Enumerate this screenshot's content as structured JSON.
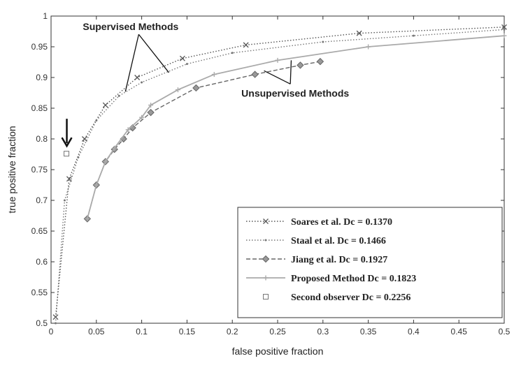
{
  "chart_data": {
    "type": "line",
    "title": "",
    "xlabel": "false positive fraction",
    "ylabel": "true positive fraction",
    "xlim": [
      0,
      0.5
    ],
    "ylim": [
      0.5,
      1
    ],
    "x_ticks": [
      "0",
      "0.05",
      "0.1",
      "0.15",
      "0.2",
      "0.25",
      "0.3",
      "0.35",
      "0.4",
      "0.45",
      "0.5"
    ],
    "y_ticks": [
      "0.5",
      "0.55",
      "0.6",
      "0.65",
      "0.7",
      "0.75",
      "0.8",
      "0.85",
      "0.9",
      "0.95",
      "1"
    ],
    "grid": false,
    "legend_position": "bottom-right",
    "series": [
      {
        "name": "Soares et al. Dc = 0.1370",
        "color": "#555555",
        "style": "dotted",
        "marker": "x",
        "points": [
          [
            0.005,
            0.51
          ],
          [
            0.02,
            0.735
          ],
          [
            0.037,
            0.8
          ],
          [
            0.06,
            0.855
          ],
          [
            0.095,
            0.9
          ],
          [
            0.145,
            0.931
          ],
          [
            0.215,
            0.953
          ],
          [
            0.34,
            0.972
          ],
          [
            0.5,
            0.982
          ]
        ]
      },
      {
        "name": "Staal et al. Dc = 0.1466",
        "color": "#777777",
        "style": "dotted",
        "marker": "dot",
        "points": [
          [
            0.005,
            0.5
          ],
          [
            0.015,
            0.7
          ],
          [
            0.03,
            0.77
          ],
          [
            0.05,
            0.83
          ],
          [
            0.075,
            0.87
          ],
          [
            0.1,
            0.892
          ],
          [
            0.15,
            0.922
          ],
          [
            0.2,
            0.94
          ],
          [
            0.3,
            0.958
          ],
          [
            0.4,
            0.968
          ],
          [
            0.5,
            0.978
          ]
        ]
      },
      {
        "name": "Jiang et al. Dc = 0.1927",
        "color": "#666666",
        "style": "dashed",
        "marker": "diamond",
        "points": [
          [
            0.04,
            0.67
          ],
          [
            0.05,
            0.725
          ],
          [
            0.06,
            0.763
          ],
          [
            0.07,
            0.783
          ],
          [
            0.08,
            0.8
          ],
          [
            0.09,
            0.818
          ],
          [
            0.11,
            0.843
          ],
          [
            0.16,
            0.883
          ],
          [
            0.225,
            0.905
          ],
          [
            0.275,
            0.92
          ],
          [
            0.297,
            0.926
          ]
        ]
      },
      {
        "name": "Proposed Method Dc = 0.1823",
        "color": "#aaaaaa",
        "style": "solid",
        "marker": "plus",
        "points": [
          [
            0.04,
            0.67
          ],
          [
            0.05,
            0.725
          ],
          [
            0.06,
            0.763
          ],
          [
            0.07,
            0.785
          ],
          [
            0.085,
            0.815
          ],
          [
            0.1,
            0.835
          ],
          [
            0.11,
            0.855
          ],
          [
            0.14,
            0.88
          ],
          [
            0.18,
            0.905
          ],
          [
            0.25,
            0.928
          ],
          [
            0.35,
            0.95
          ],
          [
            0.5,
            0.968
          ]
        ]
      },
      {
        "name": "Second observer Dc = 0.2256",
        "color": "#777777",
        "style": "none",
        "marker": "square",
        "points": [
          [
            0.017,
            0.776
          ]
        ]
      }
    ],
    "annotations": [
      {
        "text": "Supervised Methods",
        "anchor": [
          0.035,
          0.977
        ],
        "arrows_to": [
          [
            0.082,
            0.877
          ],
          [
            0.13,
            0.908
          ]
        ]
      },
      {
        "text": "Unsupervised Methods",
        "anchor": [
          0.21,
          0.869
        ],
        "arrows_to": [
          [
            0.235,
            0.911
          ],
          [
            0.265,
            0.928
          ]
        ]
      }
    ]
  }
}
